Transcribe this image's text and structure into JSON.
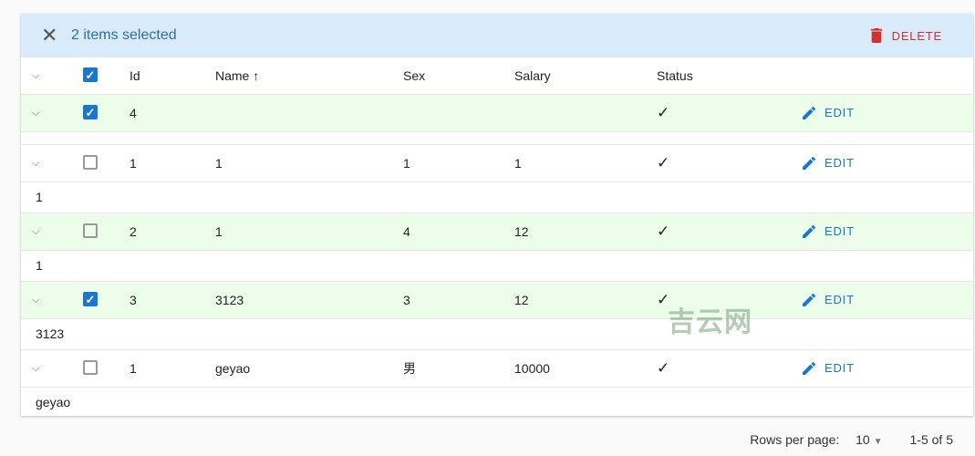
{
  "toolbar": {
    "title": "2 items selected",
    "delete_label": "DELETE"
  },
  "columns": {
    "id": "Id",
    "name": "Name",
    "sex": "Sex",
    "salary": "Salary",
    "status": "Status"
  },
  "edit_label": "EDIT",
  "rows": [
    {
      "id": "4",
      "name": "",
      "sex": "",
      "salary": "",
      "status": true,
      "selected": true,
      "detail": ""
    },
    {
      "id": "1",
      "name": "1",
      "sex": "1",
      "salary": "1",
      "status": true,
      "selected": false,
      "detail": "1"
    },
    {
      "id": "2",
      "name": "1",
      "sex": "4",
      "salary": "12",
      "status": true,
      "selected": false,
      "detail": "1"
    },
    {
      "id": "3",
      "name": "3123",
      "sex": "3",
      "salary": "12",
      "status": true,
      "selected": true,
      "detail": "3123"
    },
    {
      "id": "1",
      "name": "geyao",
      "sex": "男",
      "salary": "10000",
      "status": true,
      "selected": false,
      "detail": "geyao"
    }
  ],
  "footer": {
    "rows_per_page_label": "Rows per page:",
    "rows_per_page": "10",
    "range": "1-5 of 5"
  },
  "watermark": "吉云网",
  "colors": {
    "accent": "#1976d2",
    "danger": "#d32f2f",
    "toolbar_bg": "#d9ebfa",
    "row_highlight": "#ecfdea"
  }
}
